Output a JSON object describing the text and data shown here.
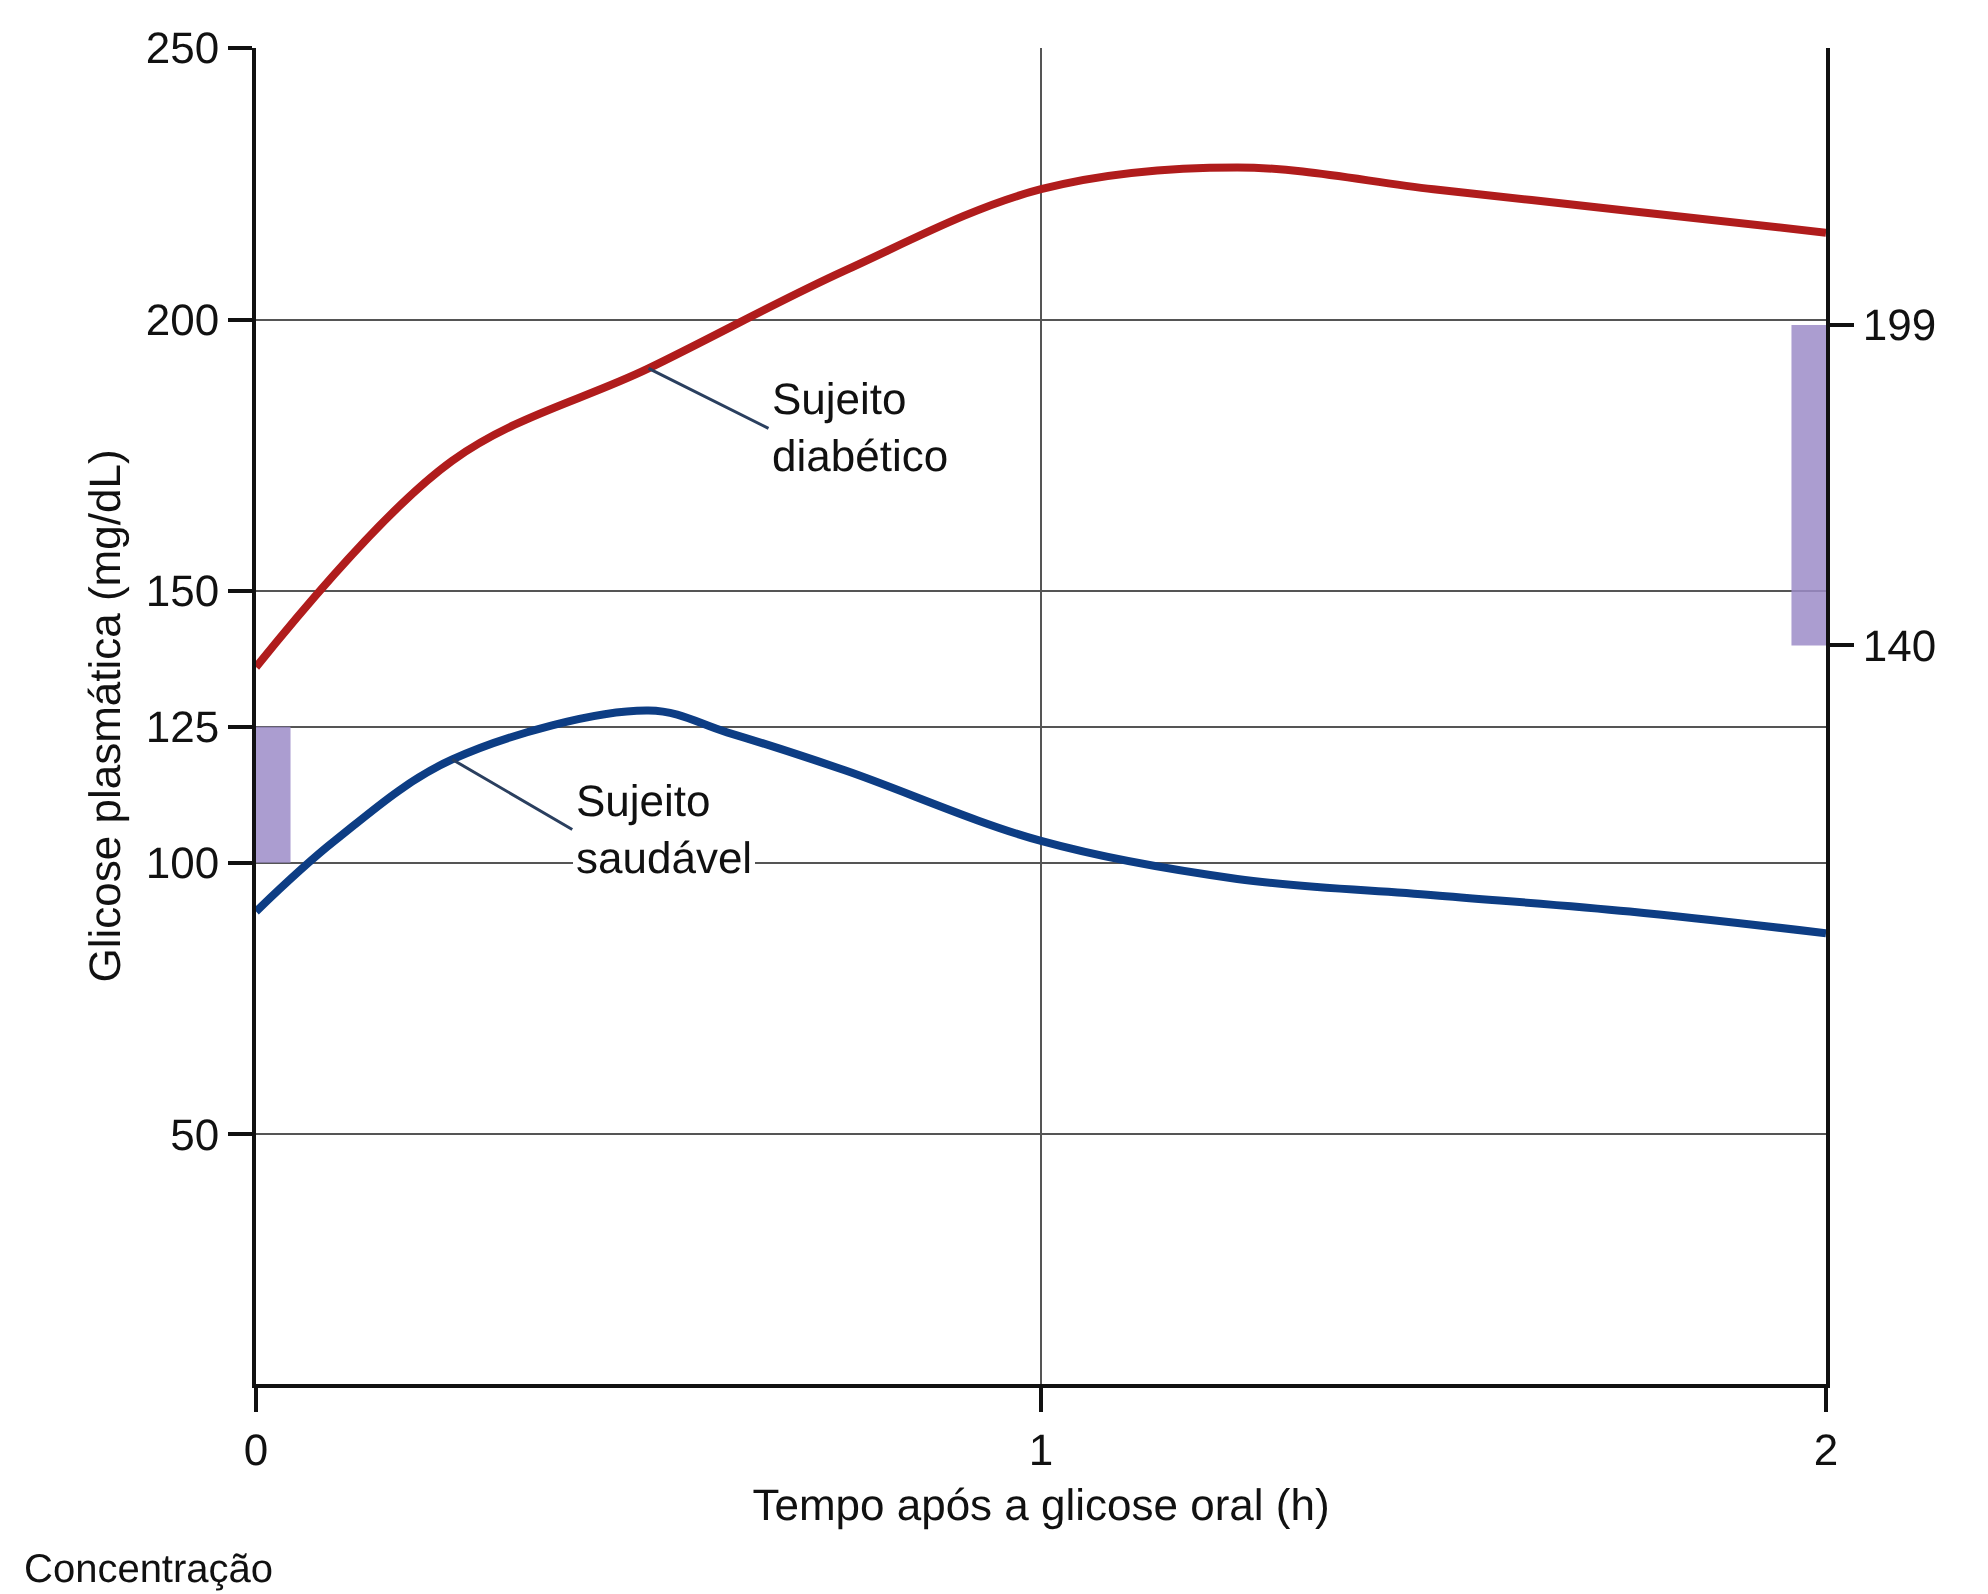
{
  "chart_data": {
    "type": "line",
    "xlabel": "Tempo após a glicose oral (h)",
    "ylabel": "Glicose plasmática (mg/dL)",
    "x": [
      0,
      0.1,
      0.25,
      0.5,
      0.6,
      0.75,
      1,
      1.25,
      1.5,
      1.75,
      2
    ],
    "series": [
      {
        "name": "Sujeito\ndiabético",
        "color": "#b01c1c",
        "x": [
          0,
          0.25,
          0.5,
          0.75,
          1,
          1.25,
          1.5,
          1.75,
          2
        ],
        "values": [
          136,
          174,
          191,
          209,
          224,
          228,
          224,
          220,
          216
        ]
      },
      {
        "name": "Sujeito\nsaudável",
        "color": "#0d3d84",
        "values": [
          91,
          104,
          119,
          128,
          124,
          117,
          104,
          97,
          94,
          91,
          87
        ]
      },
      {
        "type": "bar",
        "color": "#9c8cc8",
        "x": [
          0
        ],
        "base": [
          100
        ],
        "values": [
          25
        ]
      },
      {
        "type": "bar",
        "color": "#9c8cc8",
        "axis": "y2",
        "x": [
          2
        ],
        "base": [
          140
        ],
        "values": [
          59
        ]
      }
    ],
    "xlim": [
      0,
      2
    ],
    "xticks": [
      0,
      1,
      2
    ],
    "ylim": [
      4,
      250
    ],
    "yticks": [
      50,
      100,
      125,
      150,
      200,
      250
    ],
    "y2lim": [
      4,
      250
    ],
    "y2ticks": [
      140,
      199
    ],
    "annotations": [
      "Concentração"
    ],
    "grid": true,
    "legend": false,
    "marker": "none",
    "line_style": "solid"
  }
}
